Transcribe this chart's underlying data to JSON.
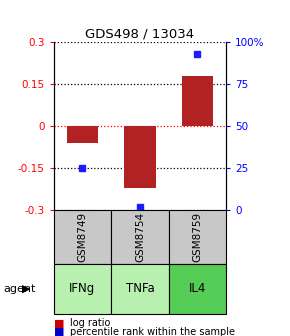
{
  "title": "GDS498 / 13034",
  "samples": [
    "GSM8749",
    "GSM8754",
    "GSM8759"
  ],
  "agents": [
    "IFNg",
    "TNFa",
    "IL4"
  ],
  "log_ratios": [
    -0.06,
    -0.22,
    0.18
  ],
  "percentile_ranks": [
    25,
    2,
    93
  ],
  "ylim_left": [
    -0.3,
    0.3
  ],
  "ylim_right": [
    0,
    100
  ],
  "yticks_left": [
    -0.3,
    -0.15,
    0,
    0.15,
    0.3
  ],
  "yticks_right": [
    0,
    25,
    50,
    75,
    100
  ],
  "ytick_labels_right": [
    "0",
    "25",
    "50",
    "75",
    "100%"
  ],
  "bar_color": "#b22222",
  "dot_color": "#1c1cff",
  "sample_box_color": "#c8c8c8",
  "agent_colors": [
    "#b8f0b0",
    "#b8f0b0",
    "#55cc55"
  ],
  "legend_bar_color": "#cc0000",
  "legend_dot_color": "#0000cc"
}
